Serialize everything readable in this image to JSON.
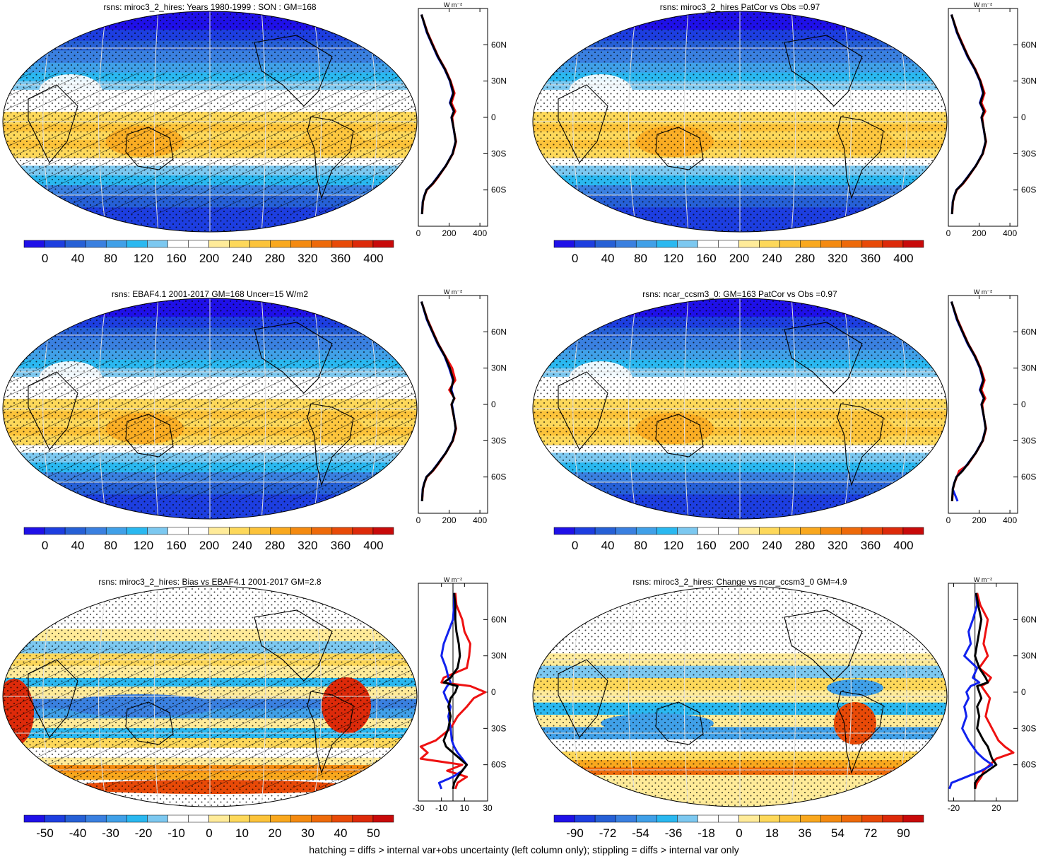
{
  "footer": "hatching = diffs > internal var+obs uncertainty (left column only); stippling = diffs > internal var only",
  "palettes": {
    "abs": [
      "#1f10e8",
      "#1d3ee0",
      "#2660d6",
      "#3a80e0",
      "#40a0e8",
      "#2ab8f0",
      "#7cc8f0",
      "#ffffff",
      "#ffffff",
      "#ffeb99",
      "#fdd85a",
      "#fcc33a",
      "#f9a81e",
      "#f48a10",
      "#ee6a0a",
      "#e84a08",
      "#dd2a0a",
      "#c80a0a"
    ],
    "bias": [
      "#1f10e8",
      "#1d3ee0",
      "#2660d6",
      "#3a80e0",
      "#40a0e8",
      "#2ab8f0",
      "#7cc8f0",
      "#ffffff",
      "#ffffff",
      "#ffeb99",
      "#fdd85a",
      "#fcc33a",
      "#f9a81e",
      "#f48a10",
      "#ee6a0a",
      "#e84a08",
      "#dd2a0a",
      "#c80a0a"
    ]
  },
  "chart_data": [
    {
      "type": "heatmap",
      "map_kind": "abs",
      "title": "rsns: miroc3_2_hires: Years 1980-1999 : SON : GM=168",
      "colorbar_ticks": [
        "0",
        "40",
        "80",
        "120",
        "160",
        "200",
        "240",
        "280",
        "320",
        "360",
        "400"
      ],
      "profile_unit": "W m⁻²",
      "profile_xticks": [
        "0",
        "200",
        "400"
      ],
      "profile_xlim": [
        0,
        450
      ],
      "lat_ticks": [
        "60N",
        "30N",
        "0",
        "30S",
        "60S"
      ],
      "lat_values": [
        60,
        30,
        0,
        -30,
        -60
      ],
      "hatched": true,
      "profile_series": [
        {
          "color": "red",
          "lat": [
            85,
            70,
            60,
            50,
            40,
            30,
            20,
            12,
            5,
            0,
            -10,
            -20,
            -30,
            -40,
            -50,
            -55,
            -60,
            -65,
            -70,
            -80
          ],
          "values": [
            20,
            60,
            95,
            130,
            175,
            210,
            235,
            215,
            240,
            220,
            230,
            245,
            225,
            180,
            125,
            95,
            55,
            40,
            30,
            25
          ]
        },
        {
          "color": "blue",
          "lat": [
            85,
            70,
            60,
            50,
            40,
            30,
            20,
            12,
            5,
            0,
            -10,
            -20,
            -30,
            -40,
            -50,
            -55,
            -60,
            -65,
            -70,
            -80
          ],
          "values": [
            20,
            55,
            90,
            125,
            170,
            205,
            225,
            205,
            230,
            215,
            230,
            242,
            222,
            178,
            120,
            90,
            52,
            38,
            28,
            24
          ]
        },
        {
          "color": "black",
          "lat": [
            85,
            70,
            60,
            50,
            40,
            30,
            20,
            12,
            5,
            0,
            -10,
            -20,
            -30,
            -40,
            -50,
            -55,
            -60,
            -65,
            -70,
            -80
          ],
          "values": [
            20,
            58,
            92,
            128,
            172,
            207,
            228,
            208,
            232,
            216,
            231,
            243,
            223,
            179,
            122,
            92,
            53,
            39,
            29,
            24
          ]
        }
      ]
    },
    {
      "type": "heatmap",
      "map_kind": "abs",
      "title": "rsns: miroc3_2_hires PatCor vs Obs =0.97",
      "colorbar_ticks": [
        "0",
        "40",
        "80",
        "120",
        "160",
        "200",
        "240",
        "280",
        "320",
        "360",
        "400"
      ],
      "profile_unit": "W m⁻²",
      "profile_xticks": [
        "0",
        "200",
        "400"
      ],
      "profile_xlim": [
        0,
        450
      ],
      "lat_ticks": [
        "60N",
        "30N",
        "0",
        "30S",
        "60S"
      ],
      "lat_values": [
        60,
        30,
        0,
        -30,
        -60
      ],
      "hatched": false,
      "profile_series": [
        {
          "color": "red",
          "lat": [
            85,
            70,
            60,
            50,
            40,
            30,
            20,
            12,
            5,
            0,
            -10,
            -20,
            -30,
            -40,
            -50,
            -55,
            -60,
            -65,
            -70,
            -80
          ],
          "values": [
            20,
            60,
            95,
            130,
            175,
            210,
            235,
            215,
            240,
            220,
            230,
            245,
            225,
            180,
            125,
            95,
            55,
            40,
            30,
            25
          ]
        },
        {
          "color": "blue",
          "lat": [
            85,
            70,
            60,
            50,
            40,
            30,
            20,
            12,
            5,
            0,
            -10,
            -20,
            -30,
            -40,
            -50,
            -55,
            -60,
            -65,
            -70,
            -80
          ],
          "values": [
            20,
            55,
            90,
            125,
            170,
            205,
            225,
            205,
            230,
            215,
            230,
            242,
            222,
            178,
            120,
            90,
            52,
            38,
            28,
            24
          ]
        },
        {
          "color": "black",
          "lat": [
            85,
            70,
            60,
            50,
            40,
            30,
            20,
            12,
            5,
            0,
            -10,
            -20,
            -30,
            -40,
            -50,
            -55,
            -60,
            -65,
            -70,
            -80
          ],
          "values": [
            20,
            58,
            92,
            128,
            172,
            207,
            228,
            208,
            232,
            216,
            231,
            243,
            223,
            179,
            122,
            92,
            53,
            39,
            29,
            24
          ]
        }
      ]
    },
    {
      "type": "heatmap",
      "map_kind": "abs",
      "title": "rsns: EBAF4.1 2001-2017 GM=168 Uncer=15 W/m2",
      "colorbar_ticks": [
        "0",
        "40",
        "80",
        "120",
        "160",
        "200",
        "240",
        "280",
        "320",
        "360",
        "400"
      ],
      "profile_unit": "W m⁻²",
      "profile_xticks": [
        "0",
        "200",
        "400"
      ],
      "profile_xlim": [
        0,
        450
      ],
      "lat_ticks": [
        "60N",
        "30N",
        "0",
        "30S",
        "60S"
      ],
      "lat_values": [
        60,
        30,
        0,
        -30,
        -60
      ],
      "hatched": true,
      "profile_series": [
        {
          "color": "red",
          "lat": [
            85,
            70,
            60,
            50,
            40,
            30,
            20,
            12,
            5,
            0,
            -10,
            -20,
            -30,
            -40,
            -50,
            -55,
            -60,
            -65,
            -70,
            -80
          ],
          "values": [
            20,
            60,
            95,
            130,
            175,
            220,
            240,
            200,
            235,
            215,
            230,
            245,
            225,
            180,
            125,
            95,
            55,
            40,
            30,
            25
          ]
        },
        {
          "color": "blue",
          "lat": [
            85,
            70,
            60,
            50,
            40,
            30,
            20,
            12,
            5,
            0,
            -10,
            -20,
            -30,
            -40,
            -50,
            -55,
            -60,
            -65,
            -70,
            -80
          ],
          "values": [
            20,
            55,
            90,
            125,
            170,
            200,
            225,
            215,
            232,
            218,
            232,
            242,
            222,
            178,
            120,
            90,
            52,
            38,
            28,
            24
          ]
        },
        {
          "color": "black",
          "lat": [
            85,
            70,
            60,
            50,
            40,
            30,
            20,
            12,
            5,
            0,
            -10,
            -20,
            -30,
            -40,
            -50,
            -55,
            -60,
            -65,
            -70,
            -80
          ],
          "values": [
            20,
            58,
            92,
            128,
            172,
            205,
            228,
            210,
            233,
            216,
            231,
            243,
            223,
            179,
            122,
            92,
            53,
            39,
            29,
            24
          ]
        }
      ]
    },
    {
      "type": "heatmap",
      "map_kind": "abs",
      "title": "rsns: ncar_ccsm3_0: GM=163 PatCor vs Obs =0.97",
      "colorbar_ticks": [
        "0",
        "40",
        "80",
        "120",
        "160",
        "200",
        "240",
        "280",
        "320",
        "360",
        "400"
      ],
      "profile_unit": "W m⁻²",
      "profile_xticks": [
        "0",
        "200",
        "400"
      ],
      "profile_xlim": [
        0,
        450
      ],
      "lat_ticks": [
        "60N",
        "30N",
        "0",
        "30S",
        "60S"
      ],
      "lat_values": [
        60,
        30,
        0,
        -30,
        -60
      ],
      "hatched": false,
      "profile_series": [
        {
          "color": "red",
          "lat": [
            85,
            70,
            60,
            50,
            40,
            30,
            20,
            12,
            5,
            0,
            -10,
            -20,
            -30,
            -40,
            -50,
            -55,
            -60,
            -65,
            -70,
            -80
          ],
          "values": [
            20,
            60,
            95,
            130,
            175,
            210,
            235,
            215,
            240,
            220,
            230,
            245,
            225,
            180,
            125,
            70,
            55,
            40,
            30,
            25
          ]
        },
        {
          "color": "blue",
          "lat": [
            85,
            70,
            60,
            50,
            40,
            30,
            20,
            12,
            5,
            0,
            -10,
            -20,
            -30,
            -40,
            -50,
            -55,
            -60,
            -65,
            -70,
            -80
          ],
          "values": [
            20,
            55,
            90,
            125,
            170,
            205,
            225,
            205,
            230,
            215,
            230,
            242,
            222,
            178,
            120,
            90,
            52,
            38,
            28,
            60
          ]
        },
        {
          "color": "black",
          "lat": [
            85,
            70,
            60,
            50,
            40,
            30,
            20,
            12,
            5,
            0,
            -10,
            -20,
            -30,
            -40,
            -50,
            -55,
            -60,
            -65,
            -70,
            -80
          ],
          "values": [
            20,
            58,
            92,
            128,
            172,
            207,
            228,
            208,
            232,
            216,
            231,
            243,
            223,
            179,
            122,
            92,
            53,
            39,
            29,
            24
          ]
        }
      ]
    },
    {
      "type": "heatmap",
      "map_kind": "bias",
      "title": "rsns: miroc3_2_hires: Bias vs EBAF4.1 2001-2017  GM=2.8",
      "colorbar_ticks": [
        "-50",
        "-40",
        "-30",
        "-20",
        "-10",
        "0",
        "10",
        "20",
        "30",
        "40",
        "50"
      ],
      "profile_unit": "W m⁻²",
      "profile_xticks": [
        "-30",
        "-10",
        "10",
        "30"
      ],
      "profile_xlim": [
        -30,
        30
      ],
      "profile_zero_line": 0,
      "lat_ticks": [
        "60N",
        "30N",
        "0",
        "30S",
        "60S"
      ],
      "lat_values": [
        60,
        30,
        0,
        -30,
        -60
      ],
      "hatched": true,
      "profile_series": [
        {
          "color": "red",
          "lat": [
            82,
            72,
            60,
            50,
            40,
            30,
            20,
            12,
            8,
            5,
            0,
            -5,
            -12,
            -20,
            -30,
            -40,
            -45,
            -50,
            -55,
            -60,
            -65,
            -70,
            -75,
            -80
          ],
          "values": [
            2,
            3,
            8,
            10,
            15,
            14,
            12,
            -8,
            -10,
            15,
            28,
            18,
            12,
            4,
            -2,
            -15,
            -28,
            -22,
            -28,
            8,
            -5,
            12,
            4,
            2
          ]
        },
        {
          "color": "blue",
          "lat": [
            82,
            72,
            60,
            50,
            40,
            30,
            20,
            12,
            8,
            5,
            0,
            -5,
            -12,
            -20,
            -30,
            -40,
            -45,
            -50,
            -55,
            -60,
            -65,
            -70,
            -75,
            -80
          ],
          "values": [
            1,
            1,
            0,
            -4,
            -8,
            -10,
            -6,
            -4,
            -2,
            -5,
            -8,
            -6,
            -2,
            -4,
            -2,
            -1,
            1,
            4,
            8,
            12,
            8,
            0,
            -12,
            -10
          ]
        },
        {
          "color": "black",
          "lat": [
            82,
            72,
            60,
            50,
            40,
            30,
            20,
            12,
            8,
            5,
            0,
            -5,
            -12,
            -20,
            -30,
            -40,
            -45,
            -50,
            -55,
            -60,
            -65,
            -70,
            -75,
            -80
          ],
          "values": [
            1,
            2,
            2,
            3,
            5,
            6,
            4,
            -2,
            -8,
            4,
            2,
            -2,
            -4,
            -2,
            -4,
            -8,
            -6,
            0,
            6,
            12,
            8,
            4,
            1,
            0
          ]
        }
      ]
    },
    {
      "type": "heatmap",
      "map_kind": "bias",
      "title": "rsns: miroc3_2_hires: Change vs ncar_ccsm3_0 GM=4.9",
      "colorbar_ticks": [
        "-90",
        "-72",
        "-54",
        "-36",
        "-18",
        "0",
        "18",
        "36",
        "54",
        "72",
        "90"
      ],
      "profile_unit": "W m⁻²",
      "profile_xticks": [
        "-20",
        "20"
      ],
      "profile_xlim": [
        -25,
        40
      ],
      "profile_zero_line": 0,
      "lat_ticks": [
        "60N",
        "30N",
        "0",
        "30S",
        "60S"
      ],
      "lat_values": [
        60,
        30,
        0,
        -30,
        -60
      ],
      "hatched": false,
      "profile_series": [
        {
          "color": "red",
          "lat": [
            82,
            72,
            60,
            50,
            40,
            30,
            20,
            12,
            8,
            5,
            0,
            -5,
            -12,
            -20,
            -30,
            -40,
            -45,
            -50,
            -55,
            -60,
            -65,
            -70,
            -75,
            -80
          ],
          "values": [
            2,
            5,
            12,
            10,
            8,
            12,
            4,
            15,
            12,
            6,
            10,
            14,
            12,
            10,
            16,
            22,
            28,
            36,
            20,
            14,
            8,
            6,
            2,
            0
          ]
        },
        {
          "color": "blue",
          "lat": [
            82,
            72,
            60,
            50,
            40,
            30,
            20,
            12,
            8,
            5,
            0,
            -5,
            -12,
            -20,
            -30,
            -40,
            -45,
            -50,
            -55,
            -60,
            -65,
            -70,
            -75,
            -80
          ],
          "values": [
            1,
            2,
            -2,
            -6,
            -4,
            -10,
            2,
            -2,
            4,
            -4,
            -8,
            -6,
            -10,
            -8,
            -12,
            -6,
            -2,
            2,
            8,
            16,
            6,
            -8,
            -22,
            -24
          ]
        },
        {
          "color": "black",
          "lat": [
            82,
            72,
            60,
            50,
            40,
            30,
            20,
            12,
            8,
            5,
            0,
            -5,
            -12,
            -20,
            -30,
            -40,
            -45,
            -50,
            -55,
            -60,
            -65,
            -70,
            -75,
            -80
          ],
          "values": [
            1,
            3,
            6,
            4,
            2,
            0,
            4,
            10,
            12,
            2,
            4,
            6,
            2,
            4,
            2,
            8,
            12,
            14,
            16,
            20,
            12,
            4,
            0,
            0
          ]
        }
      ]
    }
  ]
}
